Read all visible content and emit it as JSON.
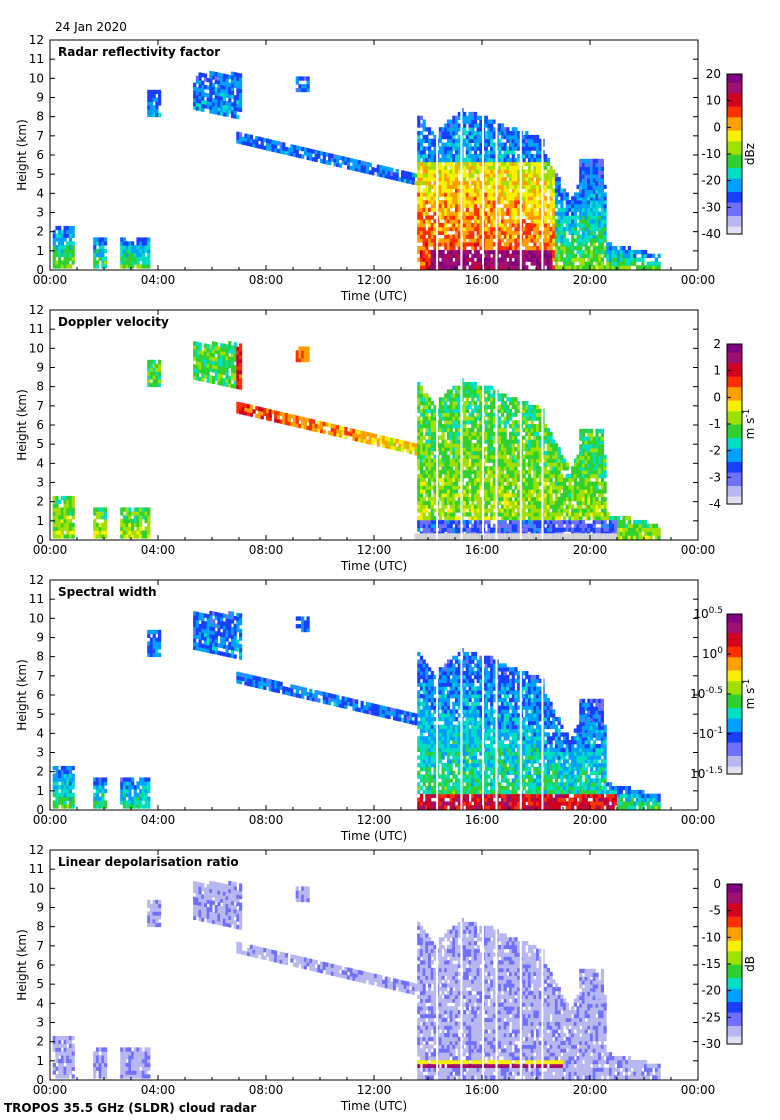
{
  "header": {
    "date": "24 Jan 2020"
  },
  "footer": {
    "caption": "TROPOS 35.5 GHz (SLDR) cloud radar"
  },
  "colors": {
    "colormap": [
      "#e0e0f0",
      "#b8b8f0",
      "#7070ff",
      "#1840ff",
      "#00a0ff",
      "#00e0c0",
      "#30d030",
      "#a0e000",
      "#f8f000",
      "#ffa000",
      "#ff3000",
      "#d00020",
      "#a01070",
      "#800080"
    ],
    "no_echo": "#d8d8d8"
  },
  "chart_data": [
    {
      "type": "heatmap",
      "title": "Radar reflectivity factor",
      "xlabel": "Time (UTC)",
      "ylabel": "Height (km)",
      "x_ticks": [
        "00:00",
        "04:00",
        "08:00",
        "12:00",
        "16:00",
        "20:00",
        "00:00"
      ],
      "y_ticks": [
        "0",
        "1",
        "2",
        "3",
        "4",
        "5",
        "6",
        "7",
        "8",
        "9",
        "10",
        "11",
        "12"
      ],
      "xlim_hours": [
        0,
        24
      ],
      "ylim_km": [
        0,
        12
      ],
      "colorbar": {
        "label": "dBz",
        "ticks": [
          "-40",
          "-30",
          "-20",
          "-10",
          "0",
          "10",
          "20"
        ],
        "range": [
          -40,
          20
        ]
      },
      "field": "reflectivity"
    },
    {
      "type": "heatmap",
      "title": "Doppler velocity",
      "xlabel": "Time (UTC)",
      "ylabel": "Height (km)",
      "x_ticks": [
        "00:00",
        "04:00",
        "08:00",
        "12:00",
        "16:00",
        "20:00",
        "00:00"
      ],
      "y_ticks": [
        "0",
        "1",
        "2",
        "3",
        "4",
        "5",
        "6",
        "7",
        "8",
        "9",
        "10",
        "11",
        "12"
      ],
      "xlim_hours": [
        0,
        24
      ],
      "ylim_km": [
        0,
        12
      ],
      "colorbar": {
        "label": "m s-1",
        "ticks": [
          "-4",
          "-3",
          "-2",
          "-1",
          "0",
          "1",
          "2"
        ],
        "range": [
          -4,
          2
        ]
      },
      "field": "velocity"
    },
    {
      "type": "heatmap",
      "title": "Spectral width",
      "xlabel": "Time (UTC)",
      "ylabel": "Height (km)",
      "x_ticks": [
        "00:00",
        "04:00",
        "08:00",
        "12:00",
        "16:00",
        "20:00",
        "00:00"
      ],
      "y_ticks": [
        "0",
        "1",
        "2",
        "3",
        "4",
        "5",
        "6",
        "7",
        "8",
        "9",
        "10",
        "11",
        "12"
      ],
      "xlim_hours": [
        0,
        24
      ],
      "ylim_km": [
        0,
        12
      ],
      "colorbar": {
        "label": "m s-1",
        "ticks": [
          "10-1.5",
          "10-1",
          "10-0.5",
          "100",
          "100.5"
        ],
        "range": [
          -1.5,
          0.5
        ],
        "log10": true
      },
      "field": "width"
    },
    {
      "type": "heatmap",
      "title": "Linear depolarisation ratio",
      "xlabel": "Time (UTC)",
      "ylabel": "Height (km)",
      "x_ticks": [
        "00:00",
        "04:00",
        "08:00",
        "12:00",
        "16:00",
        "20:00",
        "00:00"
      ],
      "y_ticks": [
        "0",
        "1",
        "2",
        "3",
        "4",
        "5",
        "6",
        "7",
        "8",
        "9",
        "10",
        "11",
        "12"
      ],
      "xlim_hours": [
        0,
        24
      ],
      "ylim_km": [
        0,
        12
      ],
      "colorbar": {
        "label": "dB",
        "ticks": [
          "-30",
          "-25",
          "-20",
          "-15",
          "-10",
          "-5",
          "0"
        ],
        "range": [
          -30,
          0
        ]
      },
      "field": "ldr"
    }
  ]
}
